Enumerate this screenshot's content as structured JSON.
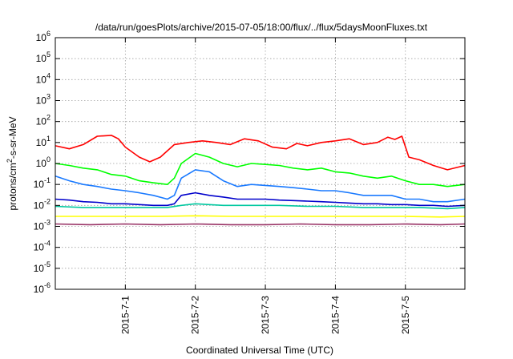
{
  "chart_data": {
    "type": "line",
    "title": "/data/run/goesPlots/archive/2015-07-05/18:00/flux/../flux/5daysMoonFluxes.txt",
    "xlabel": "Coordinated Universal Time (UTC)",
    "ylabel_parts": [
      "protons/cm",
      "2",
      "-s-sr-MeV"
    ],
    "y_scale": "log",
    "ylim": [
      1e-06,
      1000000
    ],
    "y_ticks": [
      {
        "base": "10",
        "exp": "-6",
        "value": 1e-06
      },
      {
        "base": "10",
        "exp": "-5",
        "value": 1e-05
      },
      {
        "base": "10",
        "exp": "-4",
        "value": 0.0001
      },
      {
        "base": "10",
        "exp": "-3",
        "value": 0.001
      },
      {
        "base": "10",
        "exp": "-2",
        "value": 0.01
      },
      {
        "base": "10",
        "exp": "-1",
        "value": 0.1
      },
      {
        "base": "10",
        "exp": "0",
        "value": 1
      },
      {
        "base": "10",
        "exp": "1",
        "value": 10
      },
      {
        "base": "10",
        "exp": "2",
        "value": 100
      },
      {
        "base": "10",
        "exp": "3",
        "value": 1000
      },
      {
        "base": "10",
        "exp": "4",
        "value": 10000
      },
      {
        "base": "10",
        "exp": "5",
        "value": 100000
      },
      {
        "base": "10",
        "exp": "6",
        "value": 1000000
      }
    ],
    "xlim": [
      -1.0,
      4.85
    ],
    "x_ticks": [
      {
        "label": "2015-7-1",
        "value": 0
      },
      {
        "label": "2015-7-2",
        "value": 1
      },
      {
        "label": "2015-7-3",
        "value": 2
      },
      {
        "label": "2015-7-4",
        "value": 3
      },
      {
        "label": "2015-7-5",
        "value": 4
      }
    ],
    "grid": true,
    "legend": "none",
    "series": [
      {
        "color": "#ff0000",
        "x": [
          -1.0,
          -0.8,
          -0.6,
          -0.4,
          -0.2,
          -0.1,
          0.0,
          0.2,
          0.35,
          0.5,
          0.7,
          0.9,
          1.1,
          1.3,
          1.5,
          1.7,
          1.9,
          2.1,
          2.3,
          2.45,
          2.6,
          2.8,
          3.0,
          3.2,
          3.4,
          3.6,
          3.75,
          3.85,
          3.95,
          4.05,
          4.2,
          4.4,
          4.6,
          4.85
        ],
        "y": [
          7,
          5,
          8,
          20,
          22,
          15,
          6,
          2,
          1.2,
          2,
          8,
          10,
          12,
          10,
          8,
          15,
          12,
          6,
          5,
          9,
          7,
          10,
          12,
          15,
          8,
          10,
          18,
          14,
          20,
          2,
          1.5,
          0.8,
          0.5,
          0.8
        ]
      },
      {
        "color": "#00ff00",
        "x": [
          -1.0,
          -0.8,
          -0.6,
          -0.4,
          -0.2,
          0.0,
          0.2,
          0.4,
          0.6,
          0.7,
          0.8,
          1.0,
          1.2,
          1.4,
          1.6,
          1.8,
          2.0,
          2.2,
          2.4,
          2.6,
          2.8,
          3.0,
          3.2,
          3.4,
          3.6,
          3.8,
          4.0,
          4.2,
          4.4,
          4.6,
          4.85
        ],
        "y": [
          1.0,
          0.8,
          0.6,
          0.5,
          0.3,
          0.25,
          0.15,
          0.12,
          0.1,
          0.2,
          1.0,
          3.0,
          2.0,
          1.0,
          0.7,
          1.0,
          0.9,
          0.8,
          0.6,
          0.5,
          0.6,
          0.4,
          0.35,
          0.25,
          0.2,
          0.25,
          0.15,
          0.1,
          0.1,
          0.08,
          0.1
        ]
      },
      {
        "color": "#1a7aff",
        "x": [
          -1.0,
          -0.8,
          -0.6,
          -0.4,
          -0.2,
          0.0,
          0.2,
          0.4,
          0.6,
          0.7,
          0.8,
          1.0,
          1.2,
          1.4,
          1.6,
          1.8,
          2.0,
          2.2,
          2.4,
          2.6,
          2.8,
          3.0,
          3.2,
          3.4,
          3.6,
          3.8,
          4.0,
          4.2,
          4.4,
          4.6,
          4.85
        ],
        "y": [
          0.25,
          0.15,
          0.1,
          0.08,
          0.06,
          0.05,
          0.04,
          0.03,
          0.02,
          0.03,
          0.2,
          0.5,
          0.4,
          0.15,
          0.08,
          0.1,
          0.09,
          0.08,
          0.07,
          0.06,
          0.05,
          0.05,
          0.04,
          0.03,
          0.03,
          0.03,
          0.02,
          0.02,
          0.015,
          0.015,
          0.02
        ]
      },
      {
        "color": "#0000cc",
        "x": [
          -1.0,
          -0.8,
          -0.6,
          -0.4,
          -0.2,
          0.0,
          0.2,
          0.4,
          0.6,
          0.7,
          0.8,
          1.0,
          1.2,
          1.4,
          1.6,
          1.8,
          2.0,
          2.2,
          2.4,
          2.6,
          2.8,
          3.0,
          3.2,
          3.4,
          3.6,
          3.8,
          4.0,
          4.2,
          4.4,
          4.6,
          4.85
        ],
        "y": [
          0.02,
          0.018,
          0.015,
          0.014,
          0.012,
          0.012,
          0.011,
          0.01,
          0.01,
          0.012,
          0.03,
          0.04,
          0.03,
          0.025,
          0.02,
          0.02,
          0.02,
          0.018,
          0.017,
          0.016,
          0.015,
          0.014,
          0.013,
          0.012,
          0.012,
          0.011,
          0.011,
          0.01,
          0.01,
          0.009,
          0.01
        ]
      },
      {
        "color": "#00c8a0",
        "x": [
          -1.0,
          -0.6,
          -0.2,
          0.2,
          0.6,
          0.8,
          1.0,
          1.4,
          1.8,
          2.2,
          2.6,
          3.0,
          3.4,
          3.8,
          4.2,
          4.6,
          4.85
        ],
        "y": [
          0.009,
          0.008,
          0.008,
          0.008,
          0.008,
          0.01,
          0.012,
          0.01,
          0.01,
          0.01,
          0.009,
          0.009,
          0.008,
          0.008,
          0.008,
          0.007,
          0.008
        ]
      },
      {
        "color": "#ffff00",
        "x": [
          -1.0,
          -0.5,
          0.0,
          0.5,
          1.0,
          1.5,
          2.0,
          2.5,
          3.0,
          3.5,
          4.0,
          4.5,
          4.85
        ],
        "y": [
          0.003,
          0.003,
          0.003,
          0.003,
          0.0032,
          0.003,
          0.003,
          0.003,
          0.003,
          0.003,
          0.003,
          0.0028,
          0.003
        ]
      },
      {
        "color": "#993366",
        "x": [
          -1.0,
          -0.5,
          0.0,
          0.5,
          1.0,
          1.5,
          2.0,
          2.5,
          3.0,
          3.5,
          4.0,
          4.5,
          4.85
        ],
        "y": [
          0.0013,
          0.0012,
          0.0013,
          0.0012,
          0.0013,
          0.0012,
          0.0012,
          0.0013,
          0.0012,
          0.0012,
          0.0013,
          0.0012,
          0.0013
        ]
      }
    ]
  }
}
